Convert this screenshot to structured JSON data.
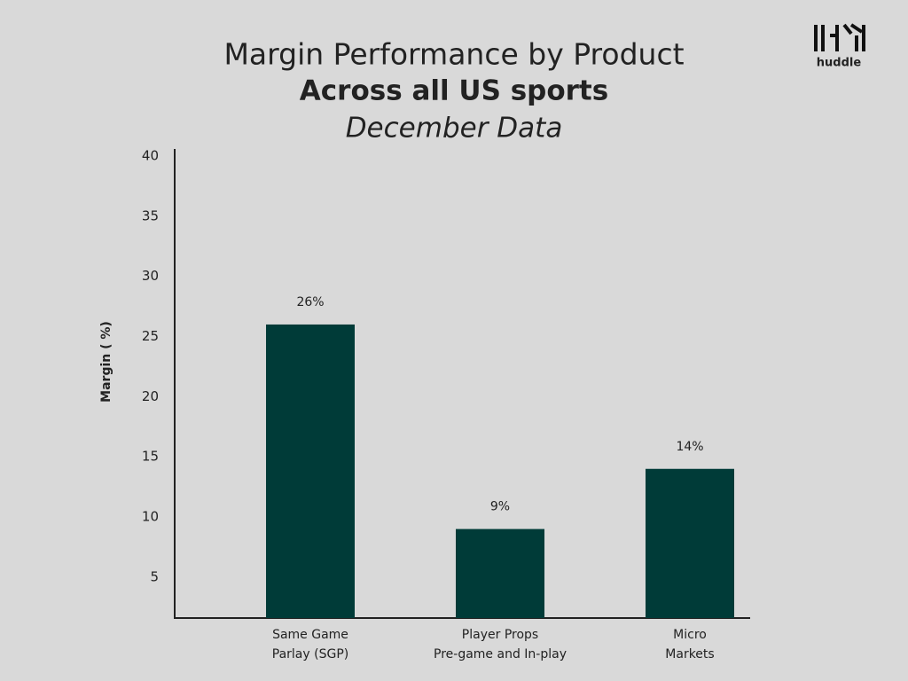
{
  "chart_data": {
    "type": "bar",
    "title": "Margin Performance by Product",
    "subtitle": "Across all US sports",
    "period": "December Data",
    "logo": "huddle",
    "y_label": "Margin ( %)",
    "categories": [
      [
        "Same Game",
        "Parlay (SGP)"
      ],
      [
        "Player Props",
        "Pre-game and In-play"
      ],
      [
        "Micro",
        "Markets"
      ]
    ],
    "values": [
      26,
      9,
      14
    ],
    "value_labels": [
      "26%",
      "9%",
      "14%"
    ],
    "color": "#003b38",
    "ylim": [
      1.6,
      40
    ],
    "yticks": [
      5,
      10,
      15,
      20,
      25,
      30,
      35,
      40
    ],
    "grid": false
  }
}
